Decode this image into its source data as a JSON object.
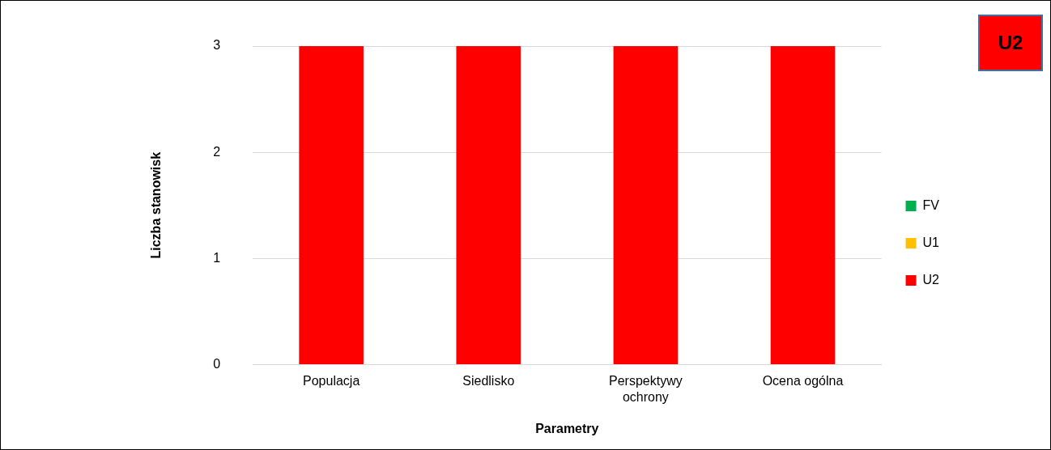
{
  "chart_data": {
    "type": "bar",
    "xlabel": "Parametry",
    "ylabel": "Liczba stanowisk",
    "categories": [
      "Populacja",
      "Siedlisko",
      "Perspektywy ochrony",
      "Ocena ogólna"
    ],
    "series": [
      {
        "name": "FV",
        "color": "#00b050",
        "values": [
          0,
          0,
          0,
          0
        ]
      },
      {
        "name": "U1",
        "color": "#ffc000",
        "values": [
          0,
          0,
          0,
          0
        ]
      },
      {
        "name": "U2",
        "color": "#ff0000",
        "values": [
          3,
          3,
          3,
          3
        ]
      }
    ],
    "stacked": true,
    "ylim": [
      0,
      3
    ],
    "yticks": [
      0,
      1,
      2,
      3
    ],
    "grid": "y",
    "legend": "right",
    "annotations": [
      "U2"
    ]
  }
}
